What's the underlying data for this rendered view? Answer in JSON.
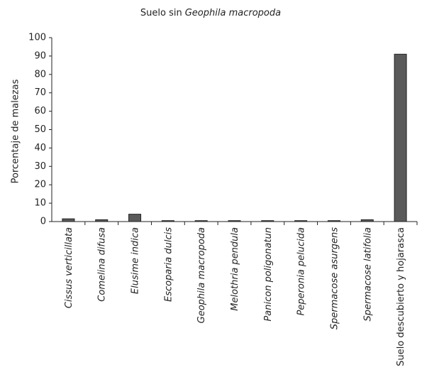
{
  "chart_data": {
    "type": "bar",
    "title": [
      "Suelo sin",
      "Geophila macropoda"
    ],
    "y_label": "Porcentaje de malezas",
    "categories": [
      "Cissus verticillata",
      "Comelina difusa",
      "Elusime indica",
      "Escoparia dulcis",
      "Geophila macropoda",
      "Melothria pendula",
      "Panicon poligonatun",
      "Peperonia pelucida",
      "Spermacose asurgens",
      "Spermacose latifolia",
      "Suelo descubierto y hojarasca"
    ],
    "values": [
      1.5,
      1,
      4,
      0.5,
      0.5,
      0.5,
      0.5,
      0.5,
      0.5,
      1,
      91
    ],
    "color": "#5a5a5a",
    "ylim": [
      0,
      100
    ],
    "yticks": [
      0,
      10,
      20,
      30,
      40,
      50,
      60,
      70,
      80,
      90,
      100
    ],
    "grid": false
  }
}
